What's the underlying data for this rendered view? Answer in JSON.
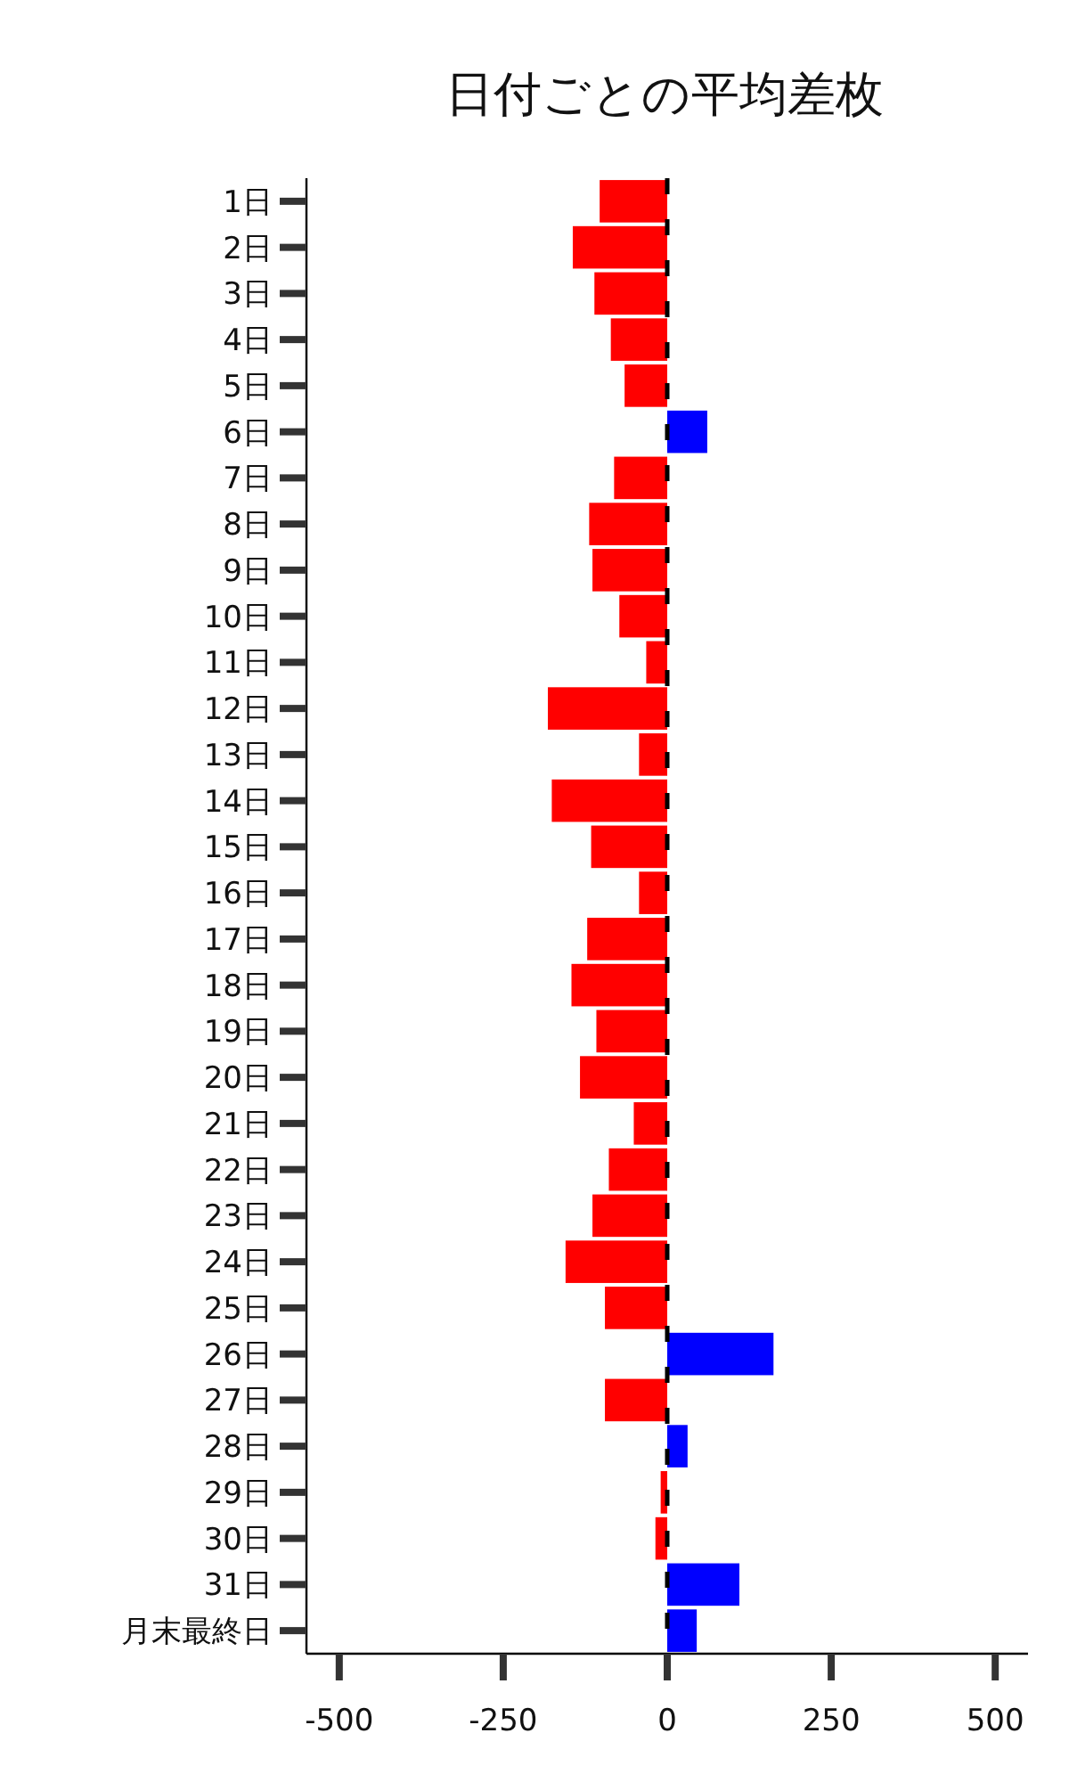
{
  "chart_data": {
    "type": "bar",
    "orientation": "horizontal",
    "title": "日付ごとの平均差枚",
    "categories": [
      "1日",
      "2日",
      "3日",
      "4日",
      "5日",
      "6日",
      "7日",
      "8日",
      "9日",
      "10日",
      "11日",
      "12日",
      "13日",
      "14日",
      "15日",
      "16日",
      "17日",
      "18日",
      "19日",
      "20日",
      "21日",
      "22日",
      "23日",
      "24日",
      "25日",
      "26日",
      "27日",
      "28日",
      "29日",
      "30日",
      "31日",
      "月末最終日"
    ],
    "values": [
      -103,
      -144,
      -111,
      -86,
      -65,
      61,
      -81,
      -119,
      -114,
      -73,
      -32,
      -182,
      -43,
      -176,
      -116,
      -43,
      -122,
      -146,
      -108,
      -133,
      -51,
      -89,
      -114,
      -155,
      -95,
      162,
      -95,
      31,
      -10,
      -18,
      110,
      45
    ],
    "colors": [
      "#ff0000",
      "#ff0000",
      "#ff0000",
      "#ff0000",
      "#ff0000",
      "#0000ff",
      "#ff0000",
      "#ff0000",
      "#ff0000",
      "#ff0000",
      "#ff0000",
      "#ff0000",
      "#ff0000",
      "#ff0000",
      "#ff0000",
      "#ff0000",
      "#ff0000",
      "#ff0000",
      "#ff0000",
      "#ff0000",
      "#ff0000",
      "#ff0000",
      "#ff0000",
      "#ff0000",
      "#ff0000",
      "#0000ff",
      "#ff0000",
      "#0000ff",
      "#ff0000",
      "#ff0000",
      "#0000ff",
      "#0000ff"
    ],
    "xlim": [
      -550,
      550
    ],
    "xticks": [
      -500,
      -250,
      0,
      250,
      500
    ],
    "ref_lines": [
      {
        "axis": "x",
        "value": 0,
        "color": "#000000",
        "line_style": "dashed"
      }
    ],
    "grid": false
  }
}
